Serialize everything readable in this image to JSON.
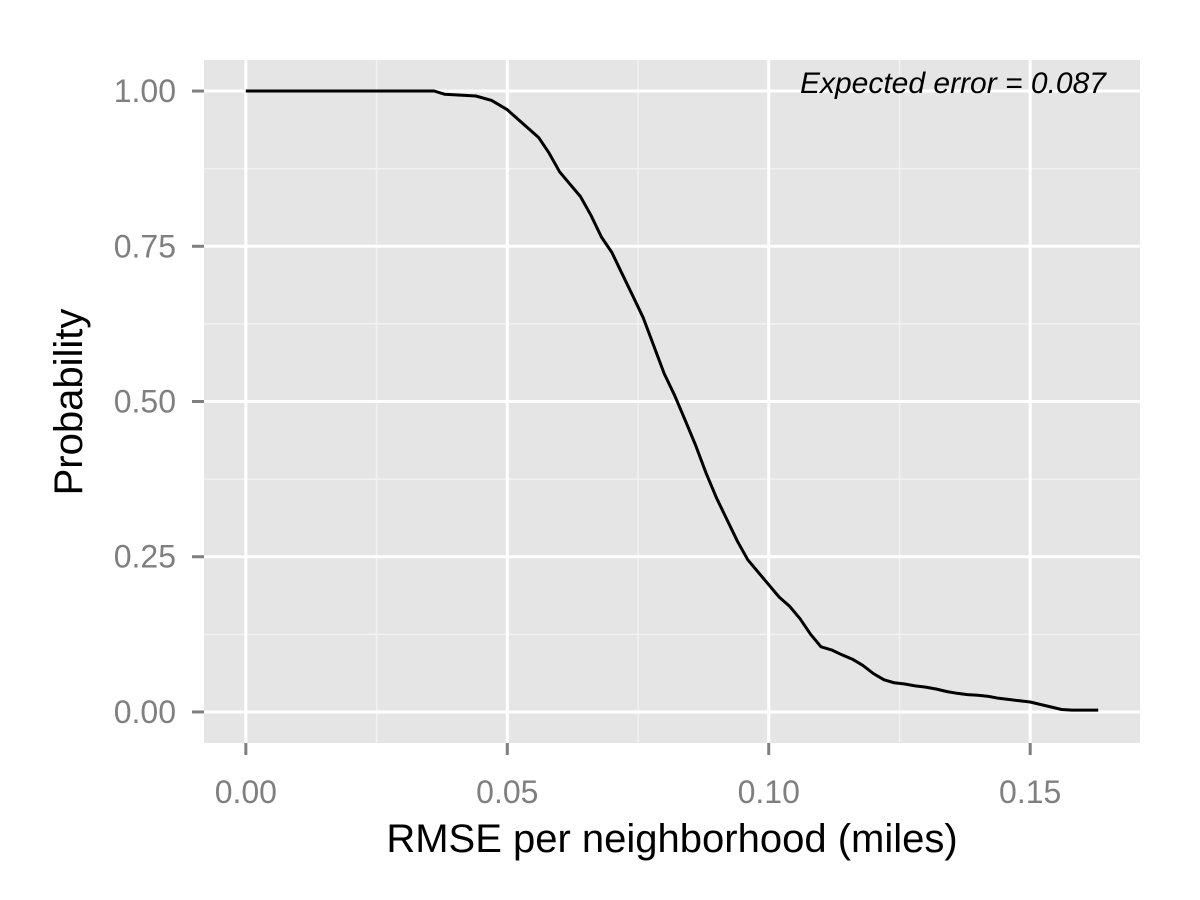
{
  "chart_data": {
    "type": "line",
    "xlabel": "RMSE per neighborhood (miles)",
    "ylabel": "Probability",
    "xlim": [
      -0.008,
      0.171
    ],
    "ylim": [
      -0.05,
      1.05
    ],
    "x_ticks": [
      0.0,
      0.05,
      0.1,
      0.15
    ],
    "x_tick_labels": [
      "0.00",
      "0.05",
      "0.10",
      "0.15"
    ],
    "y_ticks": [
      0.0,
      0.25,
      0.5,
      0.75,
      1.0
    ],
    "y_tick_labels": [
      "0.00",
      "0.25",
      "0.50",
      "0.75",
      "1.00"
    ],
    "grid": true,
    "annotation": "Expected error = 0.087",
    "series": [
      {
        "x": [
          0.0,
          0.036,
          0.038,
          0.044,
          0.047,
          0.05,
          0.052,
          0.054,
          0.056,
          0.058,
          0.06,
          0.062,
          0.064,
          0.066,
          0.068,
          0.07,
          0.072,
          0.074,
          0.076,
          0.078,
          0.08,
          0.082,
          0.084,
          0.086,
          0.088,
          0.09,
          0.092,
          0.094,
          0.096,
          0.098,
          0.1,
          0.102,
          0.104,
          0.106,
          0.108,
          0.11,
          0.112,
          0.114,
          0.116,
          0.118,
          0.12,
          0.122,
          0.124,
          0.126,
          0.128,
          0.13,
          0.132,
          0.134,
          0.136,
          0.138,
          0.14,
          0.142,
          0.144,
          0.146,
          0.148,
          0.15,
          0.152,
          0.154,
          0.156,
          0.158,
          0.16,
          0.163
        ],
        "y": [
          1.0,
          1.0,
          0.995,
          0.992,
          0.985,
          0.97,
          0.955,
          0.94,
          0.925,
          0.9,
          0.87,
          0.85,
          0.83,
          0.8,
          0.765,
          0.74,
          0.705,
          0.67,
          0.635,
          0.59,
          0.545,
          0.51,
          0.47,
          0.43,
          0.385,
          0.345,
          0.31,
          0.275,
          0.245,
          0.225,
          0.205,
          0.185,
          0.17,
          0.15,
          0.125,
          0.105,
          0.1,
          0.092,
          0.085,
          0.075,
          0.062,
          0.052,
          0.047,
          0.045,
          0.042,
          0.04,
          0.037,
          0.033,
          0.03,
          0.028,
          0.027,
          0.025,
          0.022,
          0.02,
          0.018,
          0.016,
          0.012,
          0.008,
          0.004,
          0.003,
          0.003,
          0.003
        ]
      }
    ]
  }
}
